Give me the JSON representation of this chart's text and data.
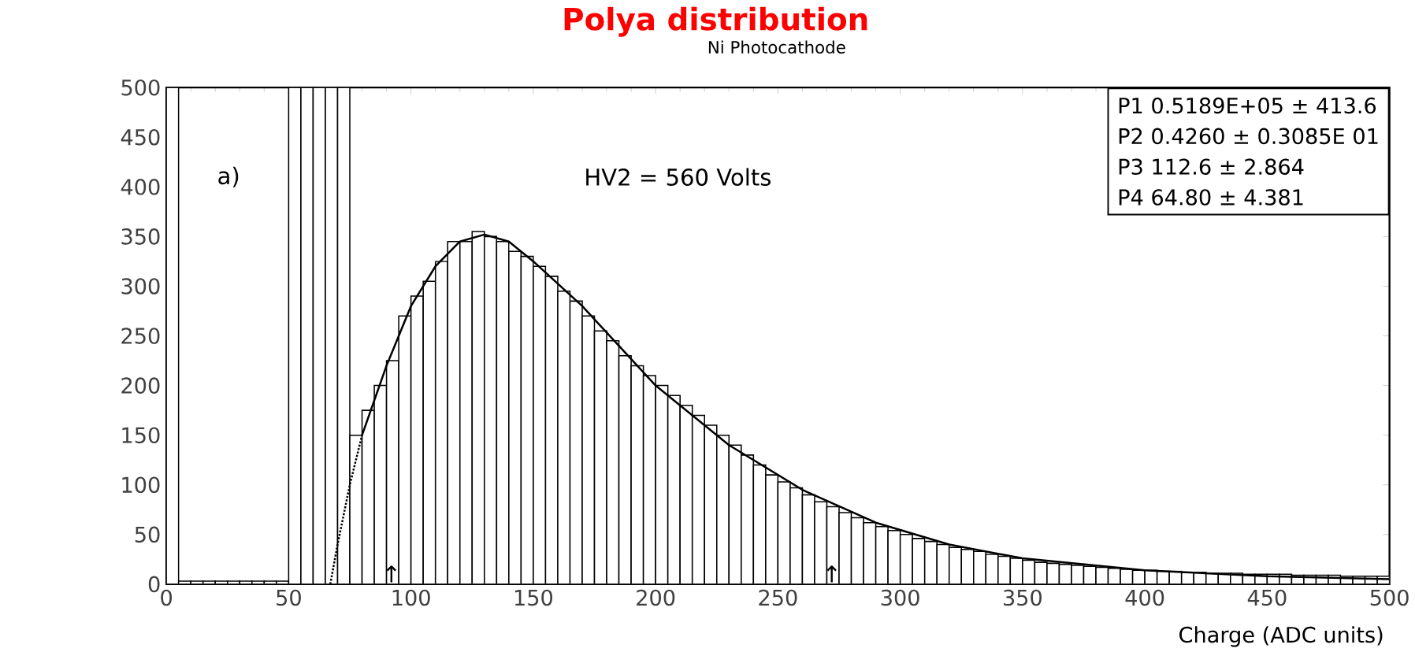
{
  "chart_data": {
    "type": "histogram",
    "title": "Polya distribution",
    "subtitle": "Ni Photocathode",
    "xlabel": "Charge (ADC units)",
    "xlim": [
      0,
      500
    ],
    "ylim": [
      0,
      500
    ],
    "xticks": [
      0,
      50,
      100,
      150,
      200,
      250,
      300,
      350,
      400,
      450,
      500
    ],
    "yticks": [
      0,
      50,
      100,
      150,
      200,
      250,
      300,
      350,
      400,
      450,
      500
    ],
    "grid": false,
    "series": [
      {
        "color": "#000000",
        "bins": [
          0,
          5,
          10,
          15,
          20,
          25,
          30,
          35,
          40,
          45,
          50,
          55,
          60,
          65,
          70,
          75,
          80,
          85,
          90,
          95,
          100,
          105,
          110,
          115,
          120,
          125,
          130,
          135,
          140,
          145,
          150,
          155,
          160,
          165,
          170,
          175,
          180,
          185,
          190,
          195,
          200,
          205,
          210,
          215,
          220,
          225,
          230,
          235,
          240,
          245,
          250,
          255,
          260,
          265,
          270,
          275,
          280,
          285,
          290,
          295,
          300,
          305,
          310,
          315,
          320,
          325,
          330,
          335,
          340,
          345,
          350,
          355,
          360,
          365,
          370,
          375,
          380,
          385,
          390,
          395,
          400,
          405,
          410,
          415,
          420,
          425,
          430,
          435,
          440,
          445,
          450,
          455,
          460,
          465,
          470,
          475,
          480,
          485,
          490,
          495,
          500
        ],
        "values": [
          500,
          3,
          3,
          3,
          3,
          3,
          3,
          3,
          3,
          3,
          500,
          500,
          500,
          500,
          500,
          150,
          175,
          200,
          225,
          270,
          290,
          305,
          325,
          345,
          345,
          355,
          350,
          345,
          335,
          330,
          320,
          310,
          295,
          285,
          270,
          255,
          245,
          230,
          220,
          210,
          200,
          190,
          180,
          170,
          160,
          150,
          140,
          130,
          120,
          110,
          103,
          97,
          90,
          83,
          78,
          72,
          67,
          62,
          58,
          54,
          50,
          46,
          43,
          40,
          37,
          35,
          33,
          30,
          28,
          26,
          24,
          22,
          21,
          20,
          19,
          18,
          17,
          16,
          15,
          14,
          14,
          13,
          13,
          12,
          12,
          11,
          11,
          11,
          10,
          10,
          10,
          10,
          9,
          9,
          9,
          9,
          8,
          8,
          8,
          8
        ]
      },
      {
        "type": "line",
        "color": "#000000",
        "line_style": "dotted",
        "x": [
          67,
          70,
          75,
          80
        ],
        "values": [
          0,
          40,
          100,
          150
        ]
      },
      {
        "type": "line",
        "color": "#000000",
        "line_style": "solid",
        "x": [
          80,
          90,
          100,
          110,
          120,
          130,
          140,
          150,
          170,
          200,
          230,
          260,
          290,
          320,
          350,
          400,
          450,
          500
        ],
        "values": [
          150,
          220,
          280,
          320,
          345,
          352,
          345,
          325,
          280,
          200,
          140,
          95,
          62,
          40,
          26,
          14,
          8,
          5
        ]
      }
    ],
    "annotations": [
      "a)",
      "HV2 = 560 Volts",
      "↑",
      "↑",
      "P1 0.5189E+05 ± 413.6",
      "P2 0.4260 ± 0.3085E 01",
      "P3 112.6 ± 2.864",
      "P4 64.80 ± 4.381"
    ]
  }
}
